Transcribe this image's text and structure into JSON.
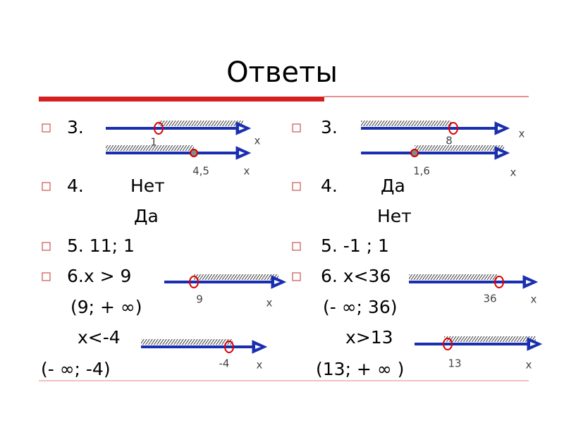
{
  "title": "Ответы",
  "left": [
    "3.",
    "4.",
    "Нет",
    "Да",
    "5. 11;  1",
    "6.x > 9",
    "(9; + ∞)",
    "x<-4",
    "(- ∞; -4)"
  ],
  "left_lines": [
    {
      "point": "1",
      "axis": "x"
    },
    {
      "point": "4,5",
      "axis": "x"
    },
    {
      "point": "9",
      "axis": "x"
    },
    {
      "point": "-4",
      "axis": "x"
    }
  ],
  "right": [
    "3.",
    "4.",
    "Да",
    "Нет",
    "5. -1 ; 1",
    "6. x<36",
    "(- ∞; 36)",
    "x>13",
    "(13; + ∞ )"
  ],
  "right_lines": [
    {
      "point": "8",
      "axis": "x"
    },
    {
      "point": "1,6",
      "axis": "x"
    },
    {
      "point": "36",
      "axis": "x"
    },
    {
      "point": "13",
      "axis": "x"
    }
  ]
}
